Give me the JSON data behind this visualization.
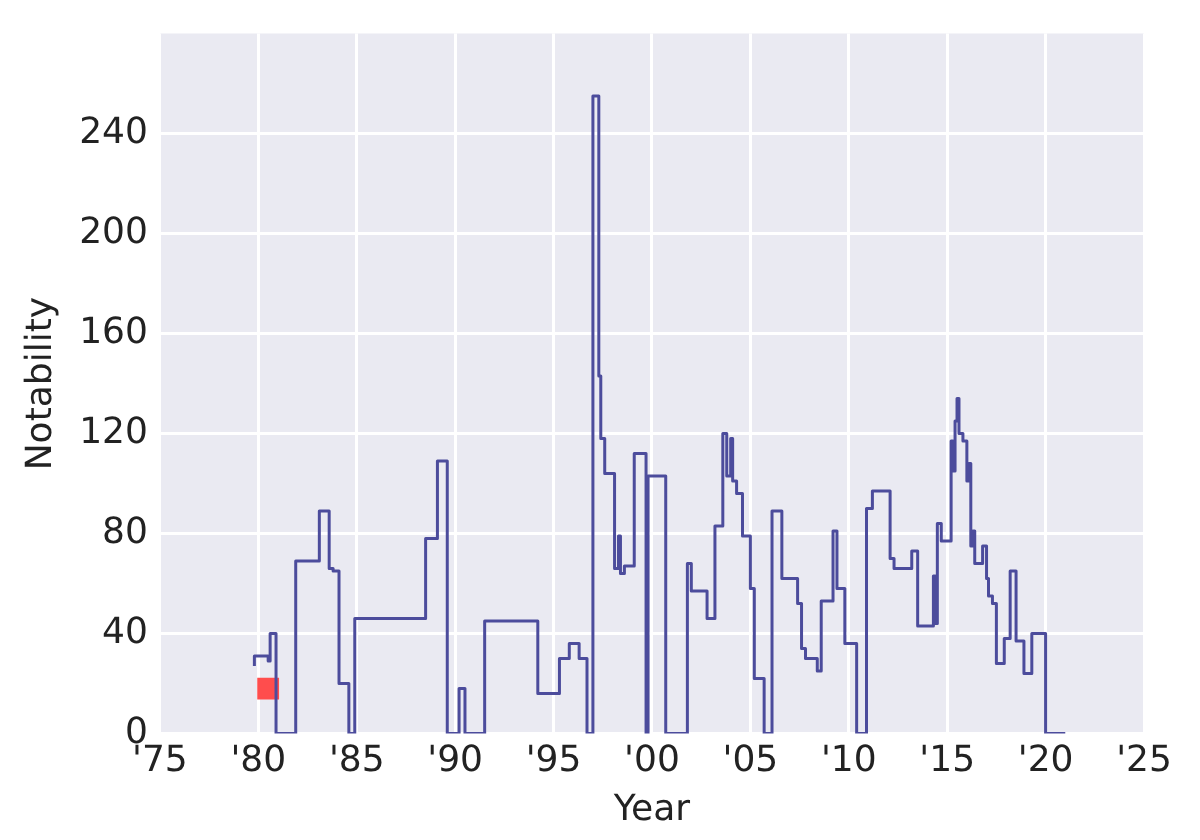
{
  "chart_data": {
    "type": "step",
    "xlabel": "Year",
    "ylabel": "Notability",
    "xlim": [
      1975,
      2025
    ],
    "xticks": [
      {
        "value": 1975,
        "label": "'75"
      },
      {
        "value": 1980,
        "label": "'80"
      },
      {
        "value": 1985,
        "label": "'85"
      },
      {
        "value": 1990,
        "label": "'90"
      },
      {
        "value": 1995,
        "label": "'95"
      },
      {
        "value": 2000,
        "label": "'00"
      },
      {
        "value": 2005,
        "label": "'05"
      },
      {
        "value": 2010,
        "label": "'10"
      },
      {
        "value": 2015,
        "label": "'15"
      },
      {
        "value": 2020,
        "label": "'20"
      },
      {
        "value": 2025,
        "label": "'25"
      }
    ],
    "ylim": [
      0,
      280
    ],
    "yticks": [
      0,
      40,
      80,
      120,
      160,
      200,
      240
    ],
    "grid": true,
    "legend": false,
    "series": [
      {
        "color": "#4c4c9c",
        "x": [
          1979.8,
          1980.5,
          1980.6,
          1980.9,
          1981.9,
          1983.1,
          1983.6,
          1983.8,
          1984.1,
          1984.6,
          1984.9,
          1988.5,
          1989.1,
          1989.6,
          1990.2,
          1990.5,
          1991.5,
          1994.2,
          1995.3,
          1995.8,
          1996.3,
          1996.7,
          1997.0,
          1997.3,
          1997.4,
          1997.6,
          1998.1,
          1998.3,
          1998.4,
          1998.6,
          1999.1,
          1999.7,
          1999.8,
          2000.7,
          2001.8,
          2002.0,
          2002.8,
          2003.2,
          2003.6,
          2003.8,
          2004.0,
          2004.1,
          2004.3,
          2004.6,
          2005.0,
          2005.2,
          2005.7,
          2006.1,
          2006.6,
          2007.4,
          2007.6,
          2007.8,
          2008.4,
          2008.6,
          2009.2,
          2009.4,
          2009.8,
          2010.4,
          2010.9,
          2011.2,
          2012.1,
          2012.3,
          2013.2,
          2013.5,
          2014.3,
          2014.4,
          2014.5,
          2014.7,
          2015.2,
          2015.3,
          2015.4,
          2015.5,
          2015.6,
          2015.8,
          2016.0,
          2016.1,
          2016.2,
          2016.3,
          2016.4,
          2016.8,
          2017.0,
          2017.1,
          2017.3,
          2017.5,
          2017.9,
          2018.2,
          2018.5,
          2018.9,
          2019.3,
          2020.0,
          2020.2,
          2021.0
        ],
        "values": [
          27,
          31,
          29,
          40,
          0,
          69,
          89,
          66,
          65,
          20,
          0,
          46,
          78,
          109,
          0,
          18,
          0,
          45,
          16,
          30,
          36,
          30,
          0,
          255,
          143,
          118,
          104,
          66,
          79,
          64,
          67,
          112,
          0,
          103,
          0,
          68,
          57,
          46,
          83,
          120,
          103,
          118,
          101,
          96,
          79,
          58,
          22,
          0,
          89,
          62,
          52,
          34,
          30,
          25,
          53,
          81,
          58,
          36,
          0,
          90,
          97,
          70,
          66,
          73,
          43,
          63,
          44,
          84,
          77,
          117,
          105,
          125,
          134,
          120,
          117,
          101,
          108,
          75,
          81,
          68,
          75,
          62,
          55,
          52,
          28,
          38,
          65,
          37,
          24,
          40,
          0,
          0
        ]
      },
      {
        "type": "scatter",
        "color": "#ff4d4d",
        "marker": "square",
        "x": [
          1980.5
        ],
        "values": [
          18
        ]
      }
    ]
  }
}
